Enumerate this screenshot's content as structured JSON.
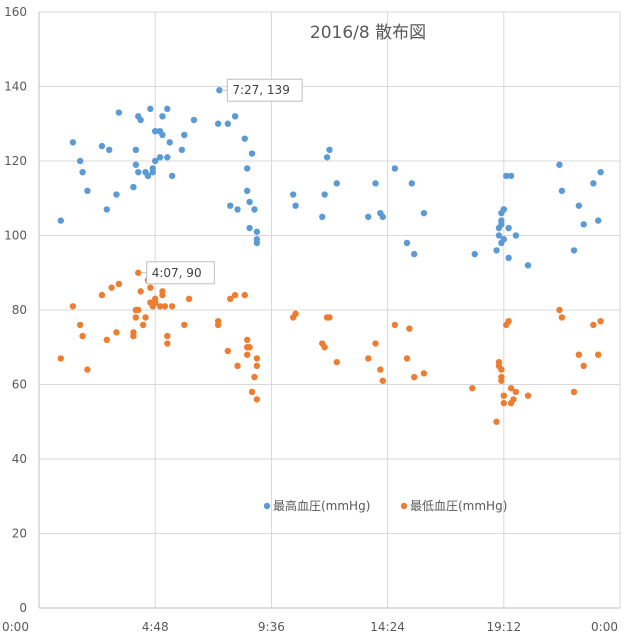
{
  "chart_data": {
    "type": "scatter",
    "title": "2016/8 散布図",
    "xlabel": "",
    "ylabel": "",
    "x_axis_unit": "hours",
    "xlim": [
      0,
      24
    ],
    "ylim": [
      0,
      160
    ],
    "x_ticks": [
      0,
      4.8,
      9.6,
      14.4,
      19.2,
      24
    ],
    "x_tick_labels": [
      "0:00",
      "4:48",
      "9:36",
      "14:24",
      "19:12",
      "0:00"
    ],
    "y_ticks": [
      0,
      20,
      40,
      60,
      80,
      100,
      120,
      140,
      160
    ],
    "y_tick_labels": [
      "0",
      "20",
      "40",
      "60",
      "80",
      "100",
      "120",
      "140",
      "160"
    ],
    "grid": true,
    "legend_position": "bottom-center",
    "series": [
      {
        "name": "最高血圧(mmHg)",
        "color": "#5B9BD5",
        "points": [
          [
            0.9,
            104
          ],
          [
            1.4,
            125
          ],
          [
            1.7,
            120
          ],
          [
            1.8,
            117
          ],
          [
            2.0,
            112
          ],
          [
            2.6,
            124
          ],
          [
            2.8,
            107
          ],
          [
            2.9,
            123
          ],
          [
            3.2,
            111
          ],
          [
            3.3,
            133
          ],
          [
            3.9,
            113
          ],
          [
            4.0,
            119
          ],
          [
            4.0,
            123
          ],
          [
            4.1,
            132
          ],
          [
            4.1,
            117
          ],
          [
            4.2,
            131
          ],
          [
            4.4,
            117
          ],
          [
            4.5,
            116
          ],
          [
            4.6,
            134
          ],
          [
            4.7,
            118
          ],
          [
            4.7,
            117
          ],
          [
            4.8,
            120
          ],
          [
            4.8,
            128
          ],
          [
            5.0,
            128
          ],
          [
            5.0,
            121
          ],
          [
            5.1,
            127
          ],
          [
            5.1,
            132
          ],
          [
            5.3,
            121
          ],
          [
            5.3,
            134
          ],
          [
            5.4,
            125
          ],
          [
            5.5,
            116
          ],
          [
            5.9,
            123
          ],
          [
            6.0,
            127
          ],
          [
            6.4,
            131
          ],
          [
            7.4,
            130
          ],
          [
            7.45,
            139
          ],
          [
            7.8,
            130
          ],
          [
            7.9,
            108
          ],
          [
            8.1,
            132
          ],
          [
            8.2,
            107
          ],
          [
            8.5,
            126
          ],
          [
            8.6,
            112
          ],
          [
            8.6,
            118
          ],
          [
            8.7,
            109
          ],
          [
            8.7,
            102
          ],
          [
            8.8,
            122
          ],
          [
            8.9,
            107
          ],
          [
            9.0,
            101
          ],
          [
            9.0,
            99
          ],
          [
            9.0,
            98
          ],
          [
            10.5,
            111
          ],
          [
            10.6,
            108
          ],
          [
            11.7,
            105
          ],
          [
            11.8,
            111
          ],
          [
            11.9,
            121
          ],
          [
            12.0,
            123
          ],
          [
            12.3,
            114
          ],
          [
            13.6,
            105
          ],
          [
            13.9,
            114
          ],
          [
            14.1,
            106
          ],
          [
            14.2,
            105
          ],
          [
            14.7,
            118
          ],
          [
            15.2,
            98
          ],
          [
            15.4,
            114
          ],
          [
            15.5,
            95
          ],
          [
            15.9,
            106
          ],
          [
            18.0,
            95
          ],
          [
            18.9,
            96
          ],
          [
            19.0,
            100
          ],
          [
            19.0,
            102
          ],
          [
            19.1,
            103
          ],
          [
            19.1,
            98
          ],
          [
            19.1,
            104
          ],
          [
            19.1,
            106
          ],
          [
            19.2,
            107
          ],
          [
            19.2,
            107
          ],
          [
            19.2,
            99
          ],
          [
            19.3,
            116
          ],
          [
            19.4,
            102
          ],
          [
            19.4,
            94
          ],
          [
            19.5,
            116
          ],
          [
            19.7,
            100
          ],
          [
            20.2,
            92
          ],
          [
            21.5,
            119
          ],
          [
            21.6,
            112
          ],
          [
            22.1,
            96
          ],
          [
            22.3,
            108
          ],
          [
            22.5,
            103
          ],
          [
            22.9,
            114
          ],
          [
            23.1,
            104
          ],
          [
            23.2,
            117
          ]
        ]
      },
      {
        "name": "最低血圧(mmHg)",
        "color": "#ED7D31",
        "points": [
          [
            0.9,
            67
          ],
          [
            1.4,
            81
          ],
          [
            1.7,
            76
          ],
          [
            1.8,
            73
          ],
          [
            2.0,
            64
          ],
          [
            2.6,
            84
          ],
          [
            2.8,
            72
          ],
          [
            3.0,
            86
          ],
          [
            3.2,
            74
          ],
          [
            3.3,
            87
          ],
          [
            3.9,
            74
          ],
          [
            3.9,
            73
          ],
          [
            4.0,
            80
          ],
          [
            4.0,
            78
          ],
          [
            4.1,
            80
          ],
          [
            4.1,
            90
          ],
          [
            4.2,
            85
          ],
          [
            4.3,
            76
          ],
          [
            4.4,
            78
          ],
          [
            4.5,
            88
          ],
          [
            4.6,
            82
          ],
          [
            4.6,
            86
          ],
          [
            4.7,
            81
          ],
          [
            4.8,
            82
          ],
          [
            4.8,
            83
          ],
          [
            5.0,
            81
          ],
          [
            5.1,
            85
          ],
          [
            5.1,
            84
          ],
          [
            5.2,
            81
          ],
          [
            5.3,
            73
          ],
          [
            5.3,
            71
          ],
          [
            5.3,
            88
          ],
          [
            5.5,
            81
          ],
          [
            6.0,
            76
          ],
          [
            6.2,
            83
          ],
          [
            7.4,
            77
          ],
          [
            7.4,
            76
          ],
          [
            7.8,
            69
          ],
          [
            7.9,
            83
          ],
          [
            8.1,
            84
          ],
          [
            8.2,
            65
          ],
          [
            8.5,
            84
          ],
          [
            8.6,
            72
          ],
          [
            8.6,
            70
          ],
          [
            8.6,
            68
          ],
          [
            8.7,
            70
          ],
          [
            8.8,
            58
          ],
          [
            8.9,
            62
          ],
          [
            9.0,
            67
          ],
          [
            9.0,
            65
          ],
          [
            9.0,
            56
          ],
          [
            10.5,
            78
          ],
          [
            10.6,
            79
          ],
          [
            11.7,
            71
          ],
          [
            11.8,
            70
          ],
          [
            11.9,
            78
          ],
          [
            12.0,
            78
          ],
          [
            12.3,
            66
          ],
          [
            13.6,
            67
          ],
          [
            13.9,
            71
          ],
          [
            14.1,
            64
          ],
          [
            14.2,
            61
          ],
          [
            14.7,
            76
          ],
          [
            15.2,
            67
          ],
          [
            15.3,
            75
          ],
          [
            15.5,
            62
          ],
          [
            15.9,
            63
          ],
          [
            17.9,
            59
          ],
          [
            18.9,
            50
          ],
          [
            19.0,
            65
          ],
          [
            19.0,
            66
          ],
          [
            19.1,
            64
          ],
          [
            19.1,
            62
          ],
          [
            19.1,
            61
          ],
          [
            19.2,
            57
          ],
          [
            19.2,
            55
          ],
          [
            19.3,
            76
          ],
          [
            19.4,
            77
          ],
          [
            19.5,
            59
          ],
          [
            19.5,
            55
          ],
          [
            19.6,
            56
          ],
          [
            19.7,
            58
          ],
          [
            20.2,
            57
          ],
          [
            21.5,
            80
          ],
          [
            21.6,
            78
          ],
          [
            22.1,
            58
          ],
          [
            22.3,
            68
          ],
          [
            22.5,
            65
          ],
          [
            22.9,
            76
          ],
          [
            23.1,
            68
          ],
          [
            23.2,
            77
          ]
        ]
      }
    ],
    "annotations": [
      {
        "label": "7:27, 139",
        "x": 7.45,
        "y": 139
      },
      {
        "label": "4:07, 90",
        "x": 4.12,
        "y": 90
      }
    ]
  }
}
